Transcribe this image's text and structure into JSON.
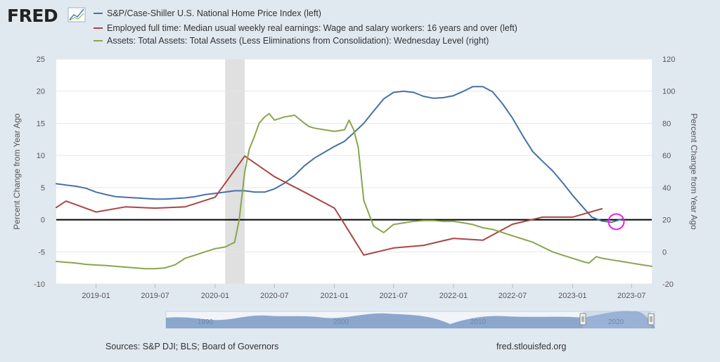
{
  "logo": {
    "text": "FRED"
  },
  "legend": [
    {
      "label": "S&P/Case-Shiller U.S. National Home Price Index (left)",
      "color": "#4572a7"
    },
    {
      "label": "Employed full time: Median usual weekly real earnings: Wage and salary workers: 16 years and over (left)",
      "color": "#aa4643"
    },
    {
      "label": "Assets: Total Assets: Total Assets (Less Eliminations from Consolidation): Wednesday Level (right)",
      "color": "#89a54e"
    }
  ],
  "footer": {
    "sources": "Sources: S&P DJI; BLS; Board of Governors",
    "site": "fred.stlouisfed.org"
  },
  "navigator": {
    "labels": [
      "1990",
      "2000",
      "2010",
      "2020"
    ]
  },
  "chart_data": {
    "type": "line",
    "x_range": [
      "2018-09-01",
      "2023-09-01"
    ],
    "x_ticks": [
      "2019-01",
      "2019-07",
      "2020-01",
      "2020-07",
      "2021-01",
      "2021-07",
      "2022-01",
      "2022-07",
      "2023-01",
      "2023-07"
    ],
    "y_left": {
      "title": "Percent Change from Year Ago",
      "min": -10,
      "max": 25,
      "ticks": [
        "25",
        "20",
        "15",
        "10",
        "5",
        "0",
        "-5",
        "-10"
      ]
    },
    "y_right": {
      "title": "Percent Change from Year Ago",
      "min": -20,
      "max": 120,
      "ticks": [
        "120",
        "100",
        "80",
        "60",
        "40",
        "20",
        "0",
        "-20"
      ]
    },
    "recession": {
      "start": "2020-02-01",
      "end": "2020-04-01",
      "color": "#e0e0e0"
    },
    "zero_line": {
      "axis": "left",
      "value": 0
    },
    "series": [
      {
        "name": "S&P/Case-Shiller U.S. National Home Price Index (left)",
        "axis": "left",
        "color": "#4572a7",
        "points": [
          [
            "2018-09",
            5.6
          ],
          [
            "2018-10",
            5.4
          ],
          [
            "2018-11",
            5.2
          ],
          [
            "2018-12",
            4.9
          ],
          [
            "2019-01",
            4.3
          ],
          [
            "2019-02",
            3.9
          ],
          [
            "2019-03",
            3.6
          ],
          [
            "2019-04",
            3.5
          ],
          [
            "2019-05",
            3.4
          ],
          [
            "2019-06",
            3.3
          ],
          [
            "2019-07",
            3.2
          ],
          [
            "2019-08",
            3.2
          ],
          [
            "2019-09",
            3.3
          ],
          [
            "2019-10",
            3.4
          ],
          [
            "2019-11",
            3.6
          ],
          [
            "2019-12",
            3.9
          ],
          [
            "2020-01",
            4.1
          ],
          [
            "2020-02",
            4.3
          ],
          [
            "2020-03",
            4.5
          ],
          [
            "2020-04",
            4.5
          ],
          [
            "2020-05",
            4.3
          ],
          [
            "2020-06",
            4.3
          ],
          [
            "2020-07",
            4.8
          ],
          [
            "2020-08",
            5.7
          ],
          [
            "2020-09",
            6.9
          ],
          [
            "2020-10",
            8.4
          ],
          [
            "2020-11",
            9.6
          ],
          [
            "2020-12",
            10.5
          ],
          [
            "2021-01",
            11.4
          ],
          [
            "2021-02",
            12.2
          ],
          [
            "2021-03",
            13.5
          ],
          [
            "2021-04",
            15.0
          ],
          [
            "2021-05",
            16.9
          ],
          [
            "2021-06",
            18.8
          ],
          [
            "2021-07",
            19.8
          ],
          [
            "2021-08",
            20.0
          ],
          [
            "2021-09",
            19.8
          ],
          [
            "2021-10",
            19.2
          ],
          [
            "2021-11",
            18.9
          ],
          [
            "2021-12",
            19.0
          ],
          [
            "2022-01",
            19.3
          ],
          [
            "2022-02",
            20.0
          ],
          [
            "2022-03",
            20.7
          ],
          [
            "2022-04",
            20.7
          ],
          [
            "2022-05",
            19.9
          ],
          [
            "2022-06",
            18.0
          ],
          [
            "2022-07",
            15.8
          ],
          [
            "2022-08",
            13.1
          ],
          [
            "2022-09",
            10.6
          ],
          [
            "2022-10",
            9.1
          ],
          [
            "2022-11",
            7.6
          ],
          [
            "2022-12",
            5.8
          ],
          [
            "2023-01",
            3.8
          ],
          [
            "2023-02",
            2.0
          ],
          [
            "2023-03",
            0.4
          ],
          [
            "2023-04",
            -0.2
          ],
          [
            "2023-05",
            -0.4
          ],
          [
            "2023-06",
            0.1
          ]
        ]
      },
      {
        "name": "Employed full time: Median usual weekly real earnings (left)",
        "axis": "left",
        "color": "#aa4643",
        "points": [
          [
            "2018-09",
            1.9
          ],
          [
            "2018-10",
            2.9
          ],
          [
            "2019-01",
            1.2
          ],
          [
            "2019-04",
            2.0
          ],
          [
            "2019-07",
            1.8
          ],
          [
            "2019-10",
            2.0
          ],
          [
            "2020-01",
            3.5
          ],
          [
            "2020-04",
            9.9
          ],
          [
            "2020-07",
            6.7
          ],
          [
            "2020-10",
            4.3
          ],
          [
            "2021-01",
            1.8
          ],
          [
            "2021-04",
            -5.5
          ],
          [
            "2021-07",
            -4.4
          ],
          [
            "2021-10",
            -4.0
          ],
          [
            "2022-01",
            -2.9
          ],
          [
            "2022-04",
            -3.2
          ],
          [
            "2022-07",
            -0.7
          ],
          [
            "2022-10",
            0.4
          ],
          [
            "2023-01",
            0.4
          ],
          [
            "2023-04",
            1.7
          ]
        ]
      },
      {
        "name": "Assets: Total Assets (Less Eliminations from Consolidation): Wednesday Level (right)",
        "axis": "right",
        "color": "#89a54e",
        "points": [
          [
            "2018-09-01",
            -6.0
          ],
          [
            "2018-10-01",
            -6.5
          ],
          [
            "2018-11-01",
            -7.0
          ],
          [
            "2018-12-01",
            -7.8
          ],
          [
            "2019-01-01",
            -8.2
          ],
          [
            "2019-02-01",
            -8.5
          ],
          [
            "2019-03-01",
            -9.0
          ],
          [
            "2019-04-01",
            -9.5
          ],
          [
            "2019-05-01",
            -10.0
          ],
          [
            "2019-06-01",
            -10.5
          ],
          [
            "2019-07-01",
            -10.5
          ],
          [
            "2019-08-01",
            -10.0
          ],
          [
            "2019-09-01",
            -8.0
          ],
          [
            "2019-10-01",
            -4.0
          ],
          [
            "2019-11-01",
            -2.0
          ],
          [
            "2019-12-01",
            0.0
          ],
          [
            "2020-01-01",
            2.0
          ],
          [
            "2020-02-01",
            3.0
          ],
          [
            "2020-03-01",
            6.0
          ],
          [
            "2020-03-15",
            20.0
          ],
          [
            "2020-04-01",
            50.0
          ],
          [
            "2020-04-15",
            64.0
          ],
          [
            "2020-05-01",
            72.0
          ],
          [
            "2020-05-15",
            80.0
          ],
          [
            "2020-06-01",
            84.0
          ],
          [
            "2020-06-15",
            86.0
          ],
          [
            "2020-07-01",
            82.0
          ],
          [
            "2020-08-01",
            84.0
          ],
          [
            "2020-09-01",
            85.0
          ],
          [
            "2020-10-01",
            80.0
          ],
          [
            "2020-10-15",
            78.0
          ],
          [
            "2020-11-01",
            77.0
          ],
          [
            "2020-12-01",
            76.0
          ],
          [
            "2021-01-01",
            75.0
          ],
          [
            "2021-02-01",
            76.0
          ],
          [
            "2021-02-15",
            82.0
          ],
          [
            "2021-03-01",
            76.0
          ],
          [
            "2021-03-15",
            65.0
          ],
          [
            "2021-04-01",
            32.0
          ],
          [
            "2021-05-01",
            16.0
          ],
          [
            "2021-06-01",
            12.0
          ],
          [
            "2021-07-01",
            17.0
          ],
          [
            "2021-08-01",
            18.0
          ],
          [
            "2021-09-01",
            19.0
          ],
          [
            "2021-10-01",
            19.5
          ],
          [
            "2021-11-01",
            19.5
          ],
          [
            "2021-12-01",
            19.0
          ],
          [
            "2022-01-01",
            19.0
          ],
          [
            "2022-02-01",
            18.0
          ],
          [
            "2022-03-01",
            17.0
          ],
          [
            "2022-04-01",
            15.0
          ],
          [
            "2022-05-01",
            14.0
          ],
          [
            "2022-06-01",
            12.0
          ],
          [
            "2022-07-01",
            10.0
          ],
          [
            "2022-08-01",
            8.0
          ],
          [
            "2022-09-01",
            6.0
          ],
          [
            "2022-10-01",
            3.0
          ],
          [
            "2022-11-01",
            0.0
          ],
          [
            "2022-12-01",
            -2.0
          ],
          [
            "2023-01-01",
            -4.0
          ],
          [
            "2023-02-01",
            -6.0
          ],
          [
            "2023-02-20",
            -7.0
          ],
          [
            "2023-03-15",
            -3.0
          ],
          [
            "2023-04-01",
            -4.0
          ],
          [
            "2023-05-01",
            -5.0
          ],
          [
            "2023-06-01",
            -6.0
          ],
          [
            "2023-07-01",
            -7.0
          ],
          [
            "2023-08-01",
            -8.0
          ],
          [
            "2023-09-01",
            -9.0
          ]
        ]
      }
    ],
    "annotation": {
      "type": "circle",
      "date": "2023-05-15",
      "value": -0.3,
      "axis": "left",
      "color": "#e81ee8"
    }
  }
}
